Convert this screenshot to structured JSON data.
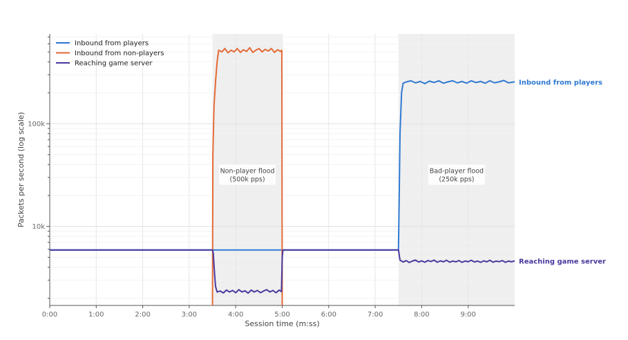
{
  "chart_data": {
    "type": "line",
    "xlabel": "Session time (m:ss)",
    "ylabel": "Packets per second (log scale)",
    "y_scale": "log",
    "xlim": [
      0,
      600
    ],
    "ylim": [
      1700,
      750000
    ],
    "x_ticks": [
      {
        "value": 0,
        "label": "0:00"
      },
      {
        "value": 60,
        "label": "1:00"
      },
      {
        "value": 120,
        "label": "2:00"
      },
      {
        "value": 180,
        "label": "3:00"
      },
      {
        "value": 240,
        "label": "4:00"
      },
      {
        "value": 300,
        "label": "5:00"
      },
      {
        "value": 360,
        "label": "6:00"
      },
      {
        "value": 420,
        "label": "7:00"
      },
      {
        "value": 480,
        "label": "8:00"
      },
      {
        "value": 540,
        "label": "9:00"
      }
    ],
    "y_ticks": [
      {
        "value": 10000,
        "label": "10k"
      },
      {
        "value": 100000,
        "label": "100k"
      }
    ],
    "grid": true,
    "legend_position": "top-left",
    "shaded_regions": [
      {
        "x_start": 210,
        "x_end": 300,
        "label_line1": "Non-player flood",
        "label_line2": "(500k pps)"
      },
      {
        "x_start": 450,
        "x_end": 600,
        "label_line1": "Bad-player flood",
        "label_line2": "(250k pps)"
      }
    ],
    "series": [
      {
        "name": "Inbound from players",
        "color": "#2f79d1",
        "end_label": "Inbound from players",
        "points": [
          [
            0,
            5900
          ],
          [
            210,
            5900
          ],
          [
            300,
            5900
          ],
          [
            450,
            5900
          ],
          [
            451,
            20000
          ],
          [
            452,
            80000
          ],
          [
            454,
            200000
          ],
          [
            456,
            248000
          ],
          [
            460,
            255000
          ],
          [
            466,
            262000
          ],
          [
            472,
            250000
          ],
          [
            478,
            258000
          ],
          [
            484,
            246000
          ],
          [
            490,
            260000
          ],
          [
            496,
            252000
          ],
          [
            502,
            262000
          ],
          [
            508,
            248000
          ],
          [
            514,
            256000
          ],
          [
            520,
            262000
          ],
          [
            526,
            250000
          ],
          [
            532,
            258000
          ],
          [
            538,
            248000
          ],
          [
            544,
            262000
          ],
          [
            550,
            252000
          ],
          [
            556,
            258000
          ],
          [
            562,
            248000
          ],
          [
            568,
            262000
          ],
          [
            574,
            250000
          ],
          [
            580,
            256000
          ],
          [
            586,
            264000
          ],
          [
            592,
            250000
          ],
          [
            600,
            256000
          ]
        ]
      },
      {
        "name": "Inbound from non-players",
        "color": "#e46a36",
        "end_label": "",
        "points": [
          [
            210,
            1700
          ],
          [
            210.5,
            50000
          ],
          [
            212,
            150000
          ],
          [
            214,
            260000
          ],
          [
            216,
            400000
          ],
          [
            218,
            520000
          ],
          [
            222,
            500000
          ],
          [
            226,
            540000
          ],
          [
            230,
            490000
          ],
          [
            234,
            520000
          ],
          [
            238,
            500000
          ],
          [
            242,
            540000
          ],
          [
            246,
            495000
          ],
          [
            250,
            525000
          ],
          [
            254,
            505000
          ],
          [
            258,
            550000
          ],
          [
            262,
            495000
          ],
          [
            266,
            520000
          ],
          [
            270,
            540000
          ],
          [
            274,
            500000
          ],
          [
            278,
            530000
          ],
          [
            282,
            510000
          ],
          [
            286,
            540000
          ],
          [
            290,
            495000
          ],
          [
            294,
            525000
          ],
          [
            298,
            505000
          ],
          [
            299.5,
            520000
          ],
          [
            300,
            1700
          ]
        ]
      },
      {
        "name": "Reaching game server",
        "color": "#48399e",
        "end_label": "Reaching game server",
        "points": [
          [
            0,
            5900
          ],
          [
            210,
            5900
          ],
          [
            211,
            5500
          ],
          [
            212,
            4200
          ],
          [
            213,
            3200
          ],
          [
            214,
            2600
          ],
          [
            216,
            2300
          ],
          [
            220,
            2350
          ],
          [
            224,
            2250
          ],
          [
            228,
            2400
          ],
          [
            232,
            2300
          ],
          [
            236,
            2380
          ],
          [
            240,
            2260
          ],
          [
            244,
            2420
          ],
          [
            248,
            2300
          ],
          [
            252,
            2360
          ],
          [
            256,
            2240
          ],
          [
            260,
            2400
          ],
          [
            264,
            2300
          ],
          [
            268,
            2380
          ],
          [
            272,
            2260
          ],
          [
            276,
            2350
          ],
          [
            280,
            2420
          ],
          [
            284,
            2300
          ],
          [
            288,
            2380
          ],
          [
            292,
            2260
          ],
          [
            296,
            2400
          ],
          [
            299,
            2320
          ],
          [
            300,
            5000
          ],
          [
            301,
            5900
          ],
          [
            450,
            5900
          ],
          [
            452,
            4700
          ],
          [
            456,
            4500
          ],
          [
            460,
            4650
          ],
          [
            464,
            4450
          ],
          [
            468,
            4600
          ],
          [
            472,
            4700
          ],
          [
            476,
            4500
          ],
          [
            480,
            4620
          ],
          [
            484,
            4480
          ],
          [
            488,
            4650
          ],
          [
            492,
            4550
          ],
          [
            496,
            4700
          ],
          [
            500,
            4480
          ],
          [
            504,
            4620
          ],
          [
            508,
            4520
          ],
          [
            512,
            4680
          ],
          [
            516,
            4480
          ],
          [
            520,
            4600
          ],
          [
            524,
            4520
          ],
          [
            528,
            4650
          ],
          [
            532,
            4470
          ],
          [
            536,
            4600
          ],
          [
            540,
            4530
          ],
          [
            544,
            4680
          ],
          [
            548,
            4500
          ],
          [
            552,
            4600
          ],
          [
            556,
            4470
          ],
          [
            560,
            4620
          ],
          [
            564,
            4520
          ],
          [
            568,
            4680
          ],
          [
            572,
            4480
          ],
          [
            576,
            4600
          ],
          [
            580,
            4530
          ],
          [
            584,
            4650
          ],
          [
            588,
            4470
          ],
          [
            592,
            4600
          ],
          [
            596,
            4520
          ],
          [
            600,
            4620
          ]
        ]
      }
    ]
  }
}
